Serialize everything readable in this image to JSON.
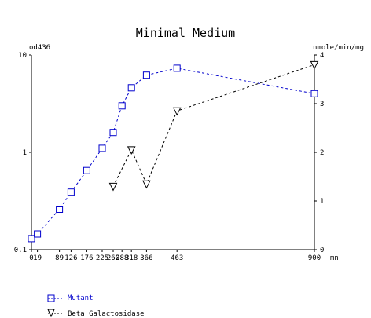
{
  "chart_data": {
    "type": "line",
    "title": "Minimal Medium",
    "y_left_label": "od436",
    "y_right_label": "nmole/min/mg",
    "x_unit": "mn",
    "x_range": [
      0,
      900
    ],
    "x_ticks": [
      "0",
      "19",
      "89",
      "126",
      "176",
      "225",
      "260",
      "288",
      "318",
      "366",
      "463",
      "900"
    ],
    "y_left_scale": "log",
    "y_left_range": [
      0.1,
      10
    ],
    "y_left_ticks": [
      "0.1",
      "1",
      "10"
    ],
    "y_right_range": [
      0,
      4
    ],
    "y_right_ticks": [
      "0",
      "1",
      "2",
      "3",
      "4"
    ],
    "grid": false,
    "legend_position": "bottom-left",
    "series": [
      {
        "name": "Mutant",
        "axis": "left",
        "color": "#0000cc",
        "marker": "square",
        "line": "dashed",
        "x": [
          0,
          19,
          89,
          126,
          176,
          225,
          260,
          288,
          318,
          366,
          463,
          900
        ],
        "y": [
          0.13,
          0.145,
          0.26,
          0.39,
          0.65,
          1.1,
          1.6,
          3.0,
          4.6,
          6.2,
          7.3,
          4.0
        ]
      },
      {
        "name": "Beta Galactosidase",
        "axis": "right",
        "color": "#000000",
        "marker": "triangle-down",
        "line": "dashed",
        "x": [
          260,
          318,
          366,
          463,
          900
        ],
        "y": [
          1.3,
          2.05,
          1.35,
          2.85,
          3.8
        ]
      }
    ]
  }
}
